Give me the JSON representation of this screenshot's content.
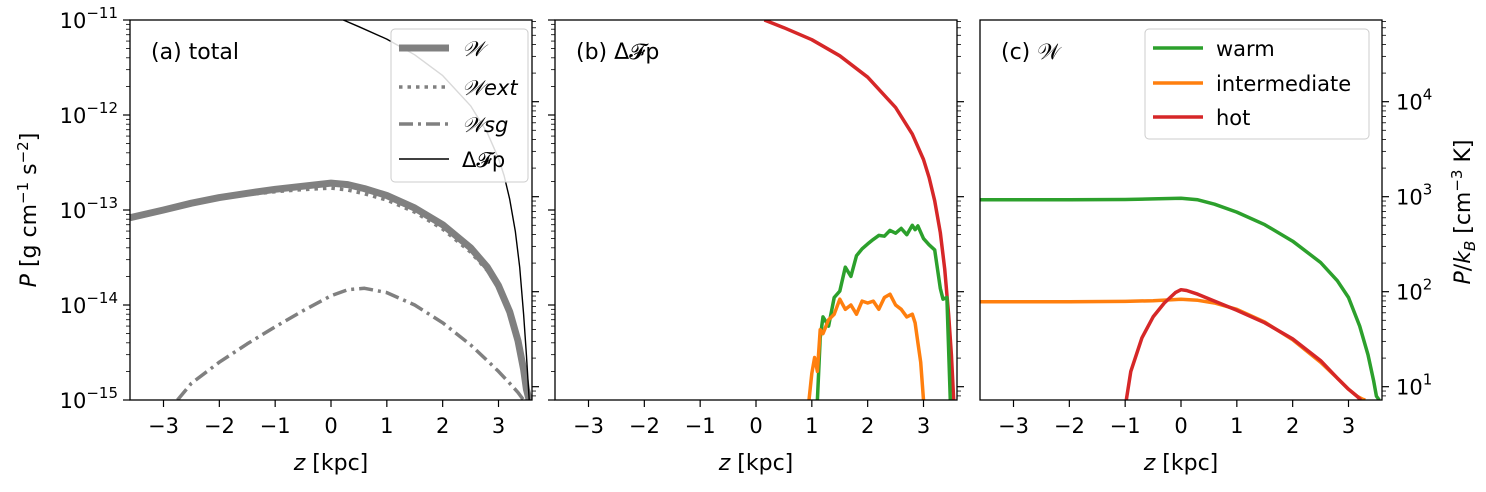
{
  "chart_data": [
    {
      "type": "line",
      "title": "(a) total",
      "xlabel": "z [kpc]",
      "ylabel": "P [g cm^-1 s^-2]",
      "xlim": [
        -3.6,
        3.6
      ],
      "ylim": [
        1e-15,
        1e-11
      ],
      "yscale": "log",
      "xticks": [
        "−3",
        "−2",
        "−1",
        "0",
        "1",
        "2",
        "3"
      ],
      "yticks": [
        {
          "base": "10",
          "exp": "−11",
          "value": 1e-11
        },
        {
          "base": "10",
          "exp": "−12",
          "value": 1e-12
        },
        {
          "base": "10",
          "exp": "−13",
          "value": 1e-13
        },
        {
          "base": "10",
          "exp": "−14",
          "value": 1e-14
        },
        {
          "base": "10",
          "exp": "−15",
          "value": 1e-15
        }
      ],
      "legend": {
        "position": "top-right",
        "entries": [
          "𝒲",
          "𝒲ext",
          "𝒲sg",
          "Δ𝓕p"
        ]
      },
      "series": [
        {
          "name": "𝒲",
          "color": "#808080",
          "style": "solid-thick",
          "x": [
            -3.6,
            -3.0,
            -2.5,
            -2.0,
            -1.5,
            -1.0,
            -0.5,
            0.0,
            0.3,
            0.6,
            1.0,
            1.5,
            2.0,
            2.5,
            2.8,
            3.0,
            3.2,
            3.35,
            3.45,
            3.5,
            3.55
          ],
          "y": [
            8.3e-14,
            1e-13,
            1.18e-13,
            1.35e-13,
            1.5e-13,
            1.65e-13,
            1.78e-13,
            1.92e-13,
            1.85e-13,
            1.68e-13,
            1.42e-13,
            1.05e-13,
            7e-14,
            4e-14,
            2.5e-14,
            1.6e-14,
            8.5e-15,
            4.2e-15,
            2.1e-15,
            1.3e-15,
            1e-15
          ]
        },
        {
          "name": "𝒲ext",
          "color": "#808080",
          "style": "dotted",
          "x": [
            -3.6,
            -3.0,
            -2.5,
            -2.0,
            -1.5,
            -1.0,
            -0.5,
            0.0,
            0.3,
            0.6,
            1.0,
            1.5,
            2.0,
            2.5,
            2.8,
            3.0,
            3.2,
            3.35,
            3.45,
            3.5,
            3.55
          ],
          "y": [
            8.3e-14,
            1e-13,
            1.17e-13,
            1.32e-13,
            1.45e-13,
            1.56e-13,
            1.64e-13,
            1.7e-13,
            1.62e-13,
            1.48e-13,
            1.27e-13,
            9.5e-14,
            6.3e-14,
            3.6e-14,
            2.3e-14,
            1.5e-14,
            8e-15,
            4e-15,
            2e-15,
            1.25e-15,
            1e-15
          ]
        },
        {
          "name": "𝒲sg",
          "color": "#808080",
          "style": "dashdot",
          "x": [
            -2.75,
            -2.5,
            -2.0,
            -1.5,
            -1.0,
            -0.5,
            0.0,
            0.3,
            0.6,
            1.0,
            1.5,
            2.0,
            2.5,
            2.8,
            3.0,
            3.2,
            3.35,
            3.45
          ],
          "y": [
            1e-15,
            1.5e-15,
            2.5e-15,
            3.9e-15,
            5.9e-15,
            8.7e-15,
            1.25e-14,
            1.45e-14,
            1.5e-14,
            1.35e-14,
            1e-14,
            6.5e-15,
            3.8e-15,
            2.6e-15,
            2e-15,
            1.5e-15,
            1.2e-15,
            1e-15
          ]
        },
        {
          "name": "Δ𝓕p",
          "color": "#000000",
          "style": "solid-thin",
          "x": [
            0.22,
            0.5,
            1.0,
            1.5,
            2.0,
            2.5,
            2.8,
            3.0,
            3.1,
            3.2,
            3.3,
            3.38,
            3.45,
            3.5,
            3.55
          ],
          "y": [
            1e-11,
            8.5e-12,
            6.3e-12,
            4.3e-12,
            2.6e-12,
            1.25e-12,
            6.5e-13,
            3.5e-13,
            2.3e-13,
            1.3e-13,
            6e-14,
            2.5e-14,
            8e-15,
            3e-15,
            1e-15
          ]
        }
      ]
    },
    {
      "type": "line",
      "title": "(b) Δ𝓕p",
      "xlabel": "z [kpc]",
      "xlim": [
        -3.6,
        3.6
      ],
      "ylim": [
        1e-15,
        1e-11
      ],
      "yscale": "log",
      "xticks": [
        "−3",
        "−2",
        "−1",
        "0",
        "1",
        "2",
        "3"
      ],
      "series": [
        {
          "color": "#d62728",
          "x": [
            0.15,
            0.5,
            1.0,
            1.5,
            2.0,
            2.5,
            2.8,
            3.0,
            3.1,
            3.2,
            3.3,
            3.38,
            3.45,
            3.5,
            3.54
          ],
          "y": [
            1e-11,
            8.3e-12,
            6.2e-12,
            4.2e-12,
            2.5e-12,
            1.2e-12,
            6.3e-13,
            3.4e-13,
            2.2e-13,
            1.25e-13,
            5.8e-14,
            2.4e-14,
            8e-15,
            3e-15,
            1e-15
          ]
        },
        {
          "color": "#2ca02c",
          "x": [
            1.1,
            1.15,
            1.2,
            1.3,
            1.4,
            1.5,
            1.6,
            1.7,
            1.8,
            1.9,
            2.0,
            2.1,
            2.2,
            2.3,
            2.4,
            2.5,
            2.6,
            2.7,
            2.8,
            2.85,
            2.9,
            3.0,
            3.1,
            3.2,
            3.3,
            3.35,
            3.42,
            3.48
          ],
          "y": [
            1e-15,
            4.5e-15,
            7.5e-15,
            6e-15,
            1.2e-14,
            1.4e-14,
            2.5e-14,
            2e-14,
            3.3e-14,
            3.9e-14,
            4.4e-14,
            4.9e-14,
            5.4e-14,
            5.3e-14,
            6.1e-14,
            5.7e-14,
            6.4e-14,
            5.5e-14,
            6.9e-14,
            6.2e-14,
            6.8e-14,
            5e-14,
            4.3e-14,
            3.8e-14,
            1.5e-14,
            1.15e-14,
            1.2e-14,
            1e-15
          ]
        },
        {
          "color": "#ff7f0e",
          "x": [
            0.95,
            1.0,
            1.05,
            1.1,
            1.15,
            1.2,
            1.3,
            1.4,
            1.5,
            1.6,
            1.7,
            1.8,
            1.9,
            2.0,
            2.1,
            2.2,
            2.3,
            2.4,
            2.5,
            2.6,
            2.7,
            2.8,
            2.85,
            2.9,
            2.95,
            3.0
          ],
          "y": [
            1e-15,
            1.9e-15,
            2.8e-15,
            2e-15,
            5.5e-15,
            5e-15,
            7e-15,
            8e-15,
            1.15e-14,
            9e-15,
            1e-14,
            8e-15,
            1.1e-14,
            1.05e-14,
            1.1e-14,
            9e-15,
            1.2e-14,
            1.3e-14,
            1e-14,
            9e-15,
            7.5e-15,
            8e-15,
            6.5e-15,
            4e-15,
            2.5e-15,
            1e-15
          ]
        }
      ]
    },
    {
      "type": "line",
      "title": "(c) 𝒲",
      "xlabel": "z [kpc]",
      "ylabel_right": "P/k_B [cm^-3 K]",
      "xlim": [
        -3.6,
        3.6
      ],
      "ylim": [
        1e-15,
        1e-11
      ],
      "yscale": "log",
      "xticks": [
        "−3",
        "−2",
        "−1",
        "0",
        "1",
        "2",
        "3"
      ],
      "yticks_right": [
        {
          "base": "10",
          "exp": "4",
          "value": 10000.0
        },
        {
          "base": "10",
          "exp": "3",
          "value": 1000.0
        },
        {
          "base": "10",
          "exp": "2",
          "value": 100.0
        },
        {
          "base": "10",
          "exp": "1",
          "value": 10.0
        }
      ],
      "legend": {
        "position": "top-right",
        "entries": [
          "warm",
          "intermediate",
          "hot"
        ]
      },
      "series": [
        {
          "name": "warm",
          "color": "#2ca02c",
          "x": [
            -3.6,
            -3.0,
            -2.0,
            -1.0,
            -0.5,
            0.0,
            0.3,
            0.6,
            1.0,
            1.5,
            2.0,
            2.5,
            2.8,
            3.0,
            3.2,
            3.35,
            3.45,
            3.5,
            3.55
          ],
          "y": [
            1.28e-13,
            1.28e-13,
            1.28e-13,
            1.29e-13,
            1.31e-13,
            1.33e-13,
            1.28e-13,
            1.15e-13,
            9.5e-14,
            7e-14,
            4.7e-14,
            2.8e-14,
            1.8e-14,
            1.2e-14,
            6e-15,
            3e-15,
            1.6e-15,
            1.1e-15,
            1e-15
          ]
        },
        {
          "name": "intermediate",
          "color": "#ff7f0e",
          "x": [
            -3.6,
            -3.0,
            -2.0,
            -1.0,
            -0.5,
            0.0,
            0.3,
            0.6,
            1.0,
            1.5,
            2.0,
            2.5,
            2.8,
            3.0,
            3.15,
            3.25,
            3.3
          ],
          "y": [
            1.08e-14,
            1.08e-14,
            1.08e-14,
            1.09e-14,
            1.11e-14,
            1.15e-14,
            1.12e-14,
            1.05e-14,
            9e-15,
            6.6e-15,
            4.3e-15,
            2.5e-15,
            1.7e-15,
            1.3e-15,
            1.1e-15,
            1.02e-15,
            1e-15
          ]
        },
        {
          "name": "hot",
          "color": "#d62728",
          "x": [
            -0.98,
            -0.9,
            -0.7,
            -0.5,
            -0.3,
            -0.1,
            0.0,
            0.1,
            0.3,
            0.6,
            1.0,
            1.5,
            2.0,
            2.5,
            2.8,
            3.0,
            3.15,
            3.22
          ],
          "y": [
            1e-15,
            2e-15,
            4.5e-15,
            7.5e-15,
            1.05e-14,
            1.35e-14,
            1.45e-14,
            1.42e-14,
            1.3e-14,
            1.1e-14,
            8.8e-15,
            6.5e-15,
            4.4e-15,
            2.6e-15,
            1.7e-15,
            1.3e-15,
            1.1e-15,
            1e-15
          ]
        }
      ]
    }
  ]
}
